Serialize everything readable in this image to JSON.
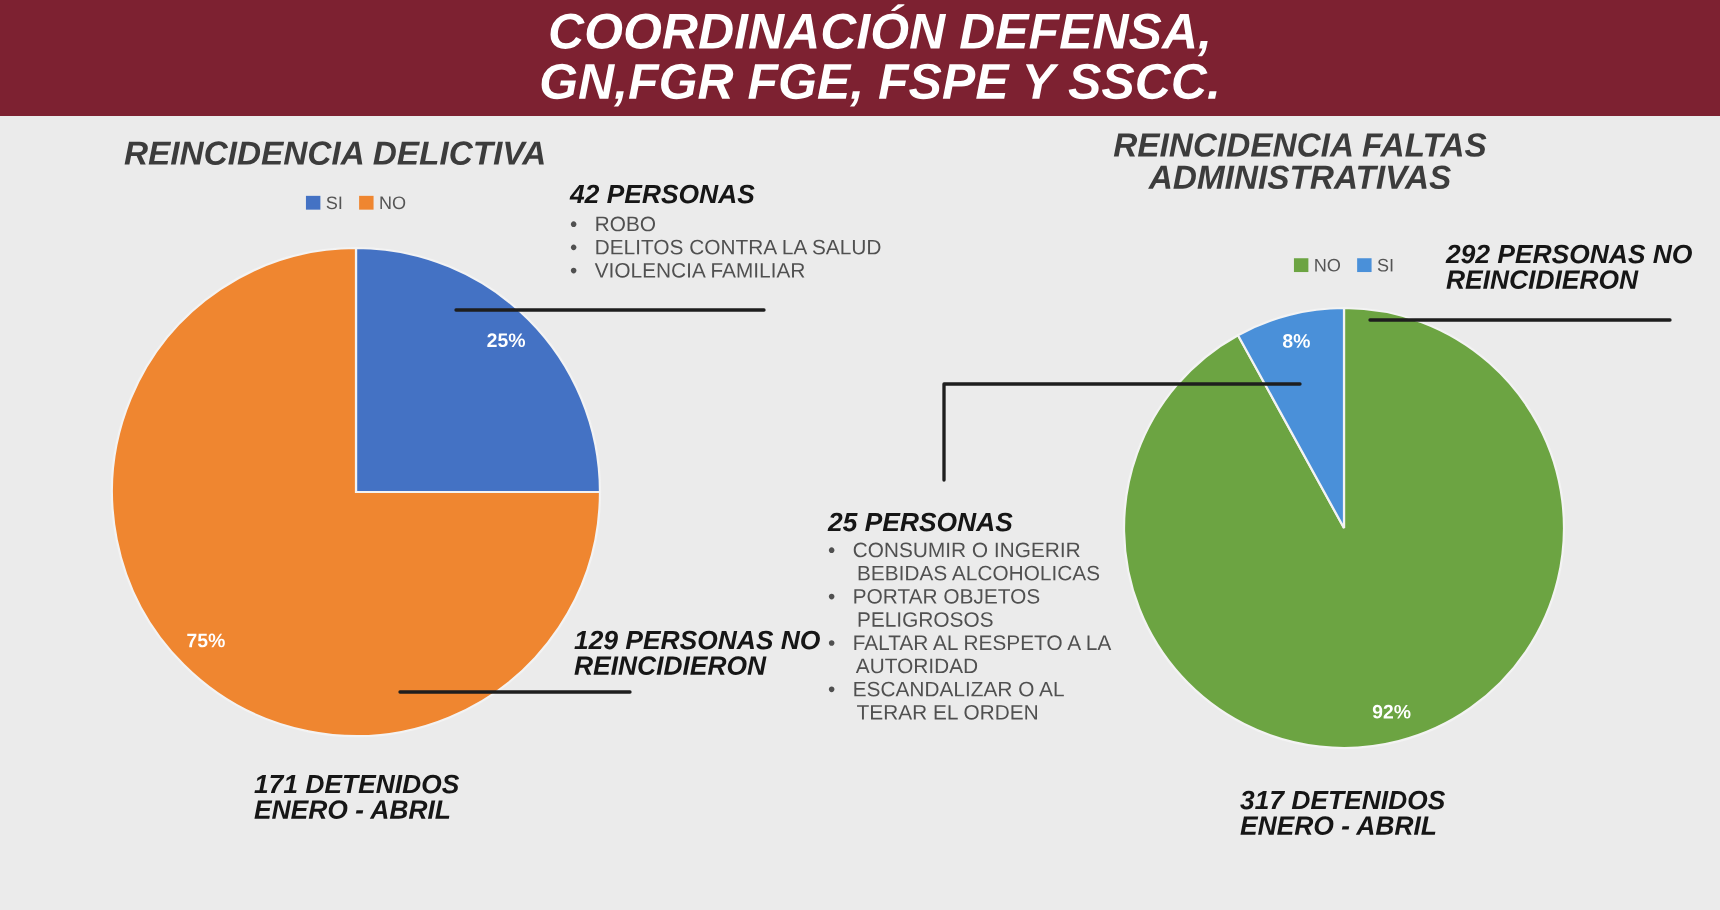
{
  "chart_data": [
    {
      "type": "other",
      "title": "COORDINACIÓN DEFENSA,\nGN,FGR FGE, FSPE Y SSCC."
    },
    {
      "type": "pie",
      "title": "REINCIDENCIA DELICTIVA",
      "categories": [
        "SI",
        "NO"
      ],
      "values": [
        25,
        75
      ],
      "colors": [
        "#4472c4",
        "#ef8630"
      ],
      "value_labels": [
        "25%",
        "75%"
      ],
      "legend": "top",
      "annotations": [
        "42 PERSONAS",
        "•   ROBO\n•   DELITOS CONTRA LA SALUD\n•   VIOLENCIA FAMILIAR",
        "129 PERSONAS NO\nREINCIDIERON",
        "171 DETENIDOS\nENERO - ABRIL"
      ]
    },
    {
      "type": "pie",
      "title": "REINCIDENCIA FALTAS\nADMINISTRATIVAS",
      "categories": [
        "NO",
        "SI"
      ],
      "values": [
        92,
        8
      ],
      "colors": [
        "#6ca442",
        "#4a90d9"
      ],
      "value_labels": [
        "92%",
        "8%"
      ],
      "legend": "top",
      "annotations": [
        "292 PERSONAS NO\nREINCIDIERON",
        "25 PERSONAS",
        "•   CONSUMIR O INGERIR\n     BEBIDAS ALCOHOLICAS\n•   PORTAR OBJETOS\n     PELIGROSOS\n•   FALTAR AL RESPETO A LA\n     AUTORIDAD\n•   ESCANDALIZAR O AL\n     TERAR EL ORDEN",
        "317 DETENIDOS\nENERO - ABRIL"
      ]
    }
  ]
}
